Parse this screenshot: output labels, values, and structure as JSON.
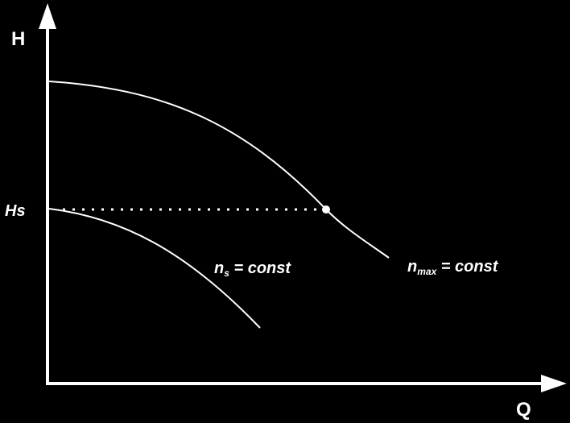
{
  "diagram": {
    "axes": {
      "y_label": "H",
      "x_label": "Q"
    },
    "level_label": "Hs",
    "curves": [
      {
        "id": "n_max",
        "label_main": "n",
        "label_sub": "max",
        "label_rest": " = const"
      },
      {
        "id": "n_s",
        "label_main": "n",
        "label_sub": "s",
        "label_rest": " = const"
      }
    ],
    "colors": {
      "background": "#000000",
      "foreground": "#ffffff"
    }
  }
}
